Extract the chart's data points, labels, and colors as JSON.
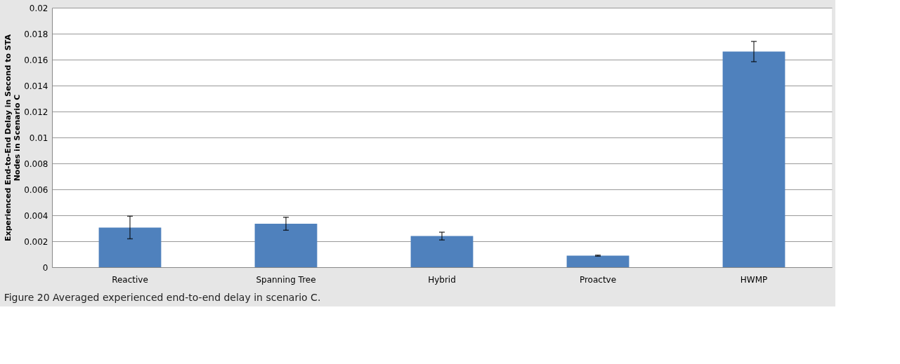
{
  "chart_data": {
    "type": "bar",
    "ylabel": "Experienced End-to-End Delay in Second to STA Nodes  in Scenario C",
    "categories": [
      "Reactive",
      "Spanning Tree",
      "Hybrid",
      "Proactve",
      "HWMP"
    ],
    "values": [
      0.00306,
      0.00335,
      0.0024,
      0.00089,
      0.01662
    ],
    "errors": [
      0.00087,
      0.0005,
      0.0003,
      4e-05,
      0.00078
    ],
    "color": "#4f81bd",
    "ylim": [
      0,
      0.02
    ],
    "yticks": [
      0,
      0.002,
      0.004,
      0.006,
      0.008,
      0.01,
      0.012,
      0.014,
      0.016,
      0.018,
      0.02
    ],
    "grid": "y",
    "annotations": [
      "Figure 20 Averaged experienced end-to-end delay in scenario C."
    ]
  }
}
